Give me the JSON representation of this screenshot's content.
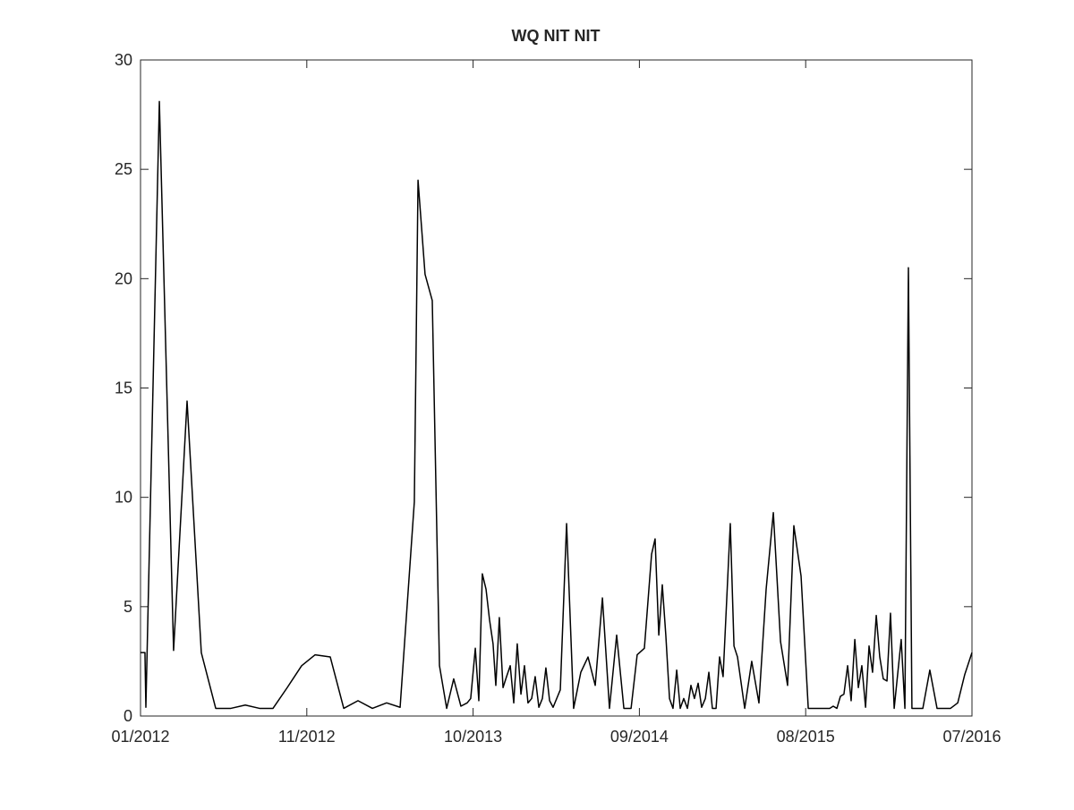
{
  "chart_data": {
    "type": "line",
    "title": "WQ NIT NIT",
    "color": "#000000",
    "x": [
      2012.0,
      2012.024,
      2012.029,
      2012.102,
      2012.179,
      2012.252,
      2012.329,
      2012.407,
      2012.489,
      2012.567,
      2012.644,
      2012.717,
      2012.794,
      2012.872,
      2012.945,
      2013.027,
      2013.1,
      2013.177,
      2013.255,
      2013.332,
      2013.405,
      2013.482,
      2013.502,
      2013.54,
      2013.579,
      2013.618,
      2013.657,
      2013.695,
      2013.734,
      2013.768,
      2013.787,
      2013.812,
      2013.831,
      2013.85,
      2013.87,
      2013.889,
      2013.908,
      2013.923,
      2013.942,
      2013.962,
      2013.981,
      2014.001,
      2014.02,
      2014.039,
      2014.059,
      2014.078,
      2014.097,
      2014.117,
      2014.136,
      2014.156,
      2014.175,
      2014.194,
      2014.214,
      2014.233,
      2014.272,
      2014.306,
      2014.344,
      2014.383,
      2014.422,
      2014.461,
      2014.5,
      2014.538,
      2014.577,
      2014.616,
      2014.655,
      2014.688,
      2014.727,
      2014.766,
      2014.785,
      2014.805,
      2014.824,
      2014.843,
      2014.863,
      2014.882,
      2014.902,
      2014.921,
      2014.94,
      2014.96,
      2014.979,
      2014.998,
      2015.018,
      2015.037,
      2015.057,
      2015.076,
      2015.095,
      2015.115,
      2015.134,
      2015.153,
      2015.192,
      2015.212,
      2015.231,
      2015.27,
      2015.308,
      2015.347,
      2015.386,
      2015.425,
      2015.464,
      2015.502,
      2015.536,
      2015.575,
      2015.614,
      2015.652,
      2015.691,
      2015.73,
      2015.749,
      2015.769,
      2015.788,
      2015.807,
      2015.827,
      2015.846,
      2015.866,
      2015.885,
      2015.904,
      2015.924,
      2015.943,
      2015.962,
      2015.982,
      2016.001,
      2016.02,
      2016.04,
      2016.059,
      2016.079,
      2016.117,
      2016.137,
      2016.156,
      2016.175,
      2016.195,
      2016.234,
      2016.272,
      2016.311,
      2016.345,
      2016.384,
      2016.423,
      2016.461,
      2016.5
    ],
    "values": [
      2.9,
      2.9,
      0.4,
      28.1,
      3.0,
      14.4,
      2.9,
      0.35,
      0.35,
      0.5,
      0.35,
      0.35,
      1.3,
      2.3,
      2.8,
      2.7,
      0.35,
      0.7,
      0.35,
      0.6,
      0.4,
      9.8,
      24.5,
      20.2,
      19.0,
      2.3,
      0.35,
      1.7,
      0.45,
      0.6,
      0.8,
      3.1,
      0.7,
      6.5,
      5.8,
      4.4,
      3.3,
      1.4,
      4.5,
      1.3,
      1.8,
      2.3,
      0.6,
      3.3,
      1.0,
      2.3,
      0.6,
      0.8,
      1.8,
      0.4,
      0.8,
      2.2,
      0.7,
      0.4,
      1.2,
      8.8,
      0.35,
      2.0,
      2.7,
      1.4,
      5.4,
      0.35,
      3.7,
      0.35,
      0.35,
      2.8,
      3.1,
      7.4,
      8.1,
      3.7,
      6.0,
      3.7,
      0.8,
      0.35,
      2.1,
      0.35,
      0.8,
      0.35,
      1.4,
      0.8,
      1.5,
      0.4,
      0.8,
      2.0,
      0.35,
      0.35,
      2.7,
      1.8,
      8.8,
      3.2,
      2.7,
      0.35,
      2.5,
      0.6,
      5.8,
      9.3,
      3.4,
      1.4,
      8.7,
      6.4,
      0.35,
      0.35,
      0.35,
      0.35,
      0.45,
      0.35,
      0.9,
      1.0,
      2.3,
      0.7,
      3.5,
      1.3,
      2.3,
      0.4,
      3.2,
      2.0,
      4.6,
      2.7,
      1.7,
      1.6,
      4.7,
      0.35,
      3.5,
      0.35,
      20.5,
      0.35,
      0.35,
      0.35,
      2.1,
      0.35,
      0.35,
      0.35,
      0.6,
      1.9,
      2.9
    ],
    "xlim": [
      2012.0,
      2016.5
    ],
    "xticks": [
      {
        "value": 2012.0,
        "label": "01/2012"
      },
      {
        "value": 2012.9,
        "label": "11/2012"
      },
      {
        "value": 2013.8,
        "label": "10/2013"
      },
      {
        "value": 2014.7,
        "label": "09/2014"
      },
      {
        "value": 2015.6,
        "label": "08/2015"
      },
      {
        "value": 2016.5,
        "label": "07/2016"
      }
    ],
    "ylim": [
      0,
      30
    ],
    "yticks": [
      0,
      5,
      10,
      15,
      20,
      25,
      30
    ],
    "grid": false
  }
}
